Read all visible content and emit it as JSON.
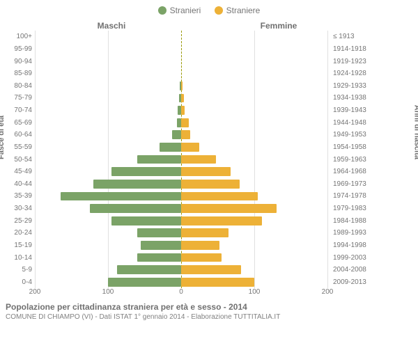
{
  "legend": {
    "male": {
      "label": "Stranieri",
      "color": "#7ba367"
    },
    "female": {
      "label": "Straniere",
      "color": "#edb137"
    }
  },
  "headers": {
    "male": "Maschi",
    "female": "Femmine"
  },
  "axis_labels": {
    "left": "Fasce di età",
    "right": "Anni di nascita"
  },
  "colors": {
    "bar_male": "#7ba367",
    "bar_female": "#edb137",
    "grid": "#e0e0e0",
    "center_dash": "#999900",
    "text": "#757575",
    "bg": "#ffffff"
  },
  "x": {
    "max": 200,
    "ticks_male": [
      200,
      100,
      0
    ],
    "ticks_female": [
      0,
      100,
      200
    ]
  },
  "rows": [
    {
      "age": "100+",
      "birth": "≤ 1913",
      "m": 0,
      "f": 0
    },
    {
      "age": "95-99",
      "birth": "1914-1918",
      "m": 0,
      "f": 0
    },
    {
      "age": "90-94",
      "birth": "1919-1923",
      "m": 0,
      "f": 0
    },
    {
      "age": "85-89",
      "birth": "1924-1928",
      "m": 0,
      "f": 0
    },
    {
      "age": "80-84",
      "birth": "1929-1933",
      "m": 2,
      "f": 2
    },
    {
      "age": "75-79",
      "birth": "1934-1938",
      "m": 3,
      "f": 4
    },
    {
      "age": "70-74",
      "birth": "1939-1943",
      "m": 5,
      "f": 5
    },
    {
      "age": "65-69",
      "birth": "1944-1948",
      "m": 6,
      "f": 10
    },
    {
      "age": "60-64",
      "birth": "1949-1953",
      "m": 12,
      "f": 12
    },
    {
      "age": "55-59",
      "birth": "1954-1958",
      "m": 30,
      "f": 25
    },
    {
      "age": "50-54",
      "birth": "1959-1963",
      "m": 60,
      "f": 48
    },
    {
      "age": "45-49",
      "birth": "1964-1968",
      "m": 95,
      "f": 68
    },
    {
      "age": "40-44",
      "birth": "1969-1973",
      "m": 120,
      "f": 80
    },
    {
      "age": "35-39",
      "birth": "1974-1978",
      "m": 165,
      "f": 105
    },
    {
      "age": "30-34",
      "birth": "1979-1983",
      "m": 125,
      "f": 130
    },
    {
      "age": "25-29",
      "birth": "1984-1988",
      "m": 95,
      "f": 110
    },
    {
      "age": "20-24",
      "birth": "1989-1993",
      "m": 60,
      "f": 65
    },
    {
      "age": "15-19",
      "birth": "1994-1998",
      "m": 55,
      "f": 52
    },
    {
      "age": "10-14",
      "birth": "1999-2003",
      "m": 60,
      "f": 55
    },
    {
      "age": "5-9",
      "birth": "2004-2008",
      "m": 88,
      "f": 82
    },
    {
      "age": "0-4",
      "birth": "2009-2013",
      "m": 100,
      "f": 100
    }
  ],
  "caption": {
    "line1": "Popolazione per cittadinanza straniera per età e sesso - 2014",
    "line2": "COMUNE DI CHIAMPO (VI) - Dati ISTAT 1° gennaio 2014 - Elaborazione TUTTITALIA.IT"
  }
}
